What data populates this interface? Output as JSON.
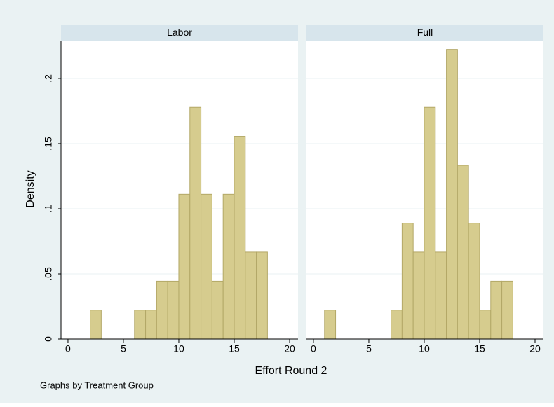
{
  "chart_data": [
    {
      "type": "histogram",
      "title": "Labor",
      "bins": [
        2,
        3,
        4,
        5,
        6,
        7,
        8,
        9,
        10,
        11,
        12,
        13,
        14,
        15,
        16,
        17,
        18
      ],
      "values": [
        0.0222,
        0,
        0,
        0,
        0.0222,
        0.0222,
        0.0444,
        0.0444,
        0.1111,
        0.1778,
        0.1111,
        0.0444,
        0.1111,
        0.1556,
        0.0667,
        0.0667
      ],
      "color": "#d6cc8e",
      "xlim": [
        -0.63,
        20.76
      ],
      "xticks": [
        0,
        5,
        10,
        15,
        20
      ],
      "ylim": [
        0,
        0.229
      ],
      "yticks": [
        0,
        {
          "value": 0.05,
          "label": ".05"
        },
        {
          "value": 0.1,
          "label": ".1"
        },
        {
          "value": 0.15,
          "label": ".15"
        },
        {
          "value": 0.2,
          "label": ".2"
        }
      ],
      "grid": true
    },
    {
      "type": "histogram",
      "title": "Full",
      "bins": [
        1,
        2,
        3,
        4,
        5,
        6,
        7,
        8,
        9,
        10,
        11,
        12,
        13,
        14,
        15,
        16,
        17,
        18
      ],
      "values": [
        0.0222,
        0,
        0,
        0,
        0,
        0,
        0.0222,
        0.0889,
        0.0667,
        0.1778,
        0.0667,
        0.2222,
        0.1333,
        0.0889,
        0.0222,
        0.0444,
        0.0444
      ],
      "color": "#d6cc8e",
      "xlim": [
        -0.63,
        20.76
      ],
      "xticks": [
        0,
        5,
        10,
        15,
        20
      ],
      "ylim": [
        0,
        0.229
      ],
      "yticks": [
        0,
        {
          "value": 0.05,
          "label": ".05"
        },
        {
          "value": 0.1,
          "label": ".1"
        },
        {
          "value": 0.15,
          "label": ".15"
        },
        {
          "value": 0.2,
          "label": ".2"
        }
      ],
      "grid": true
    }
  ],
  "ylabel": "Density",
  "xlabel": "Effort Round 2",
  "note": "Graphs by Treatment Group"
}
